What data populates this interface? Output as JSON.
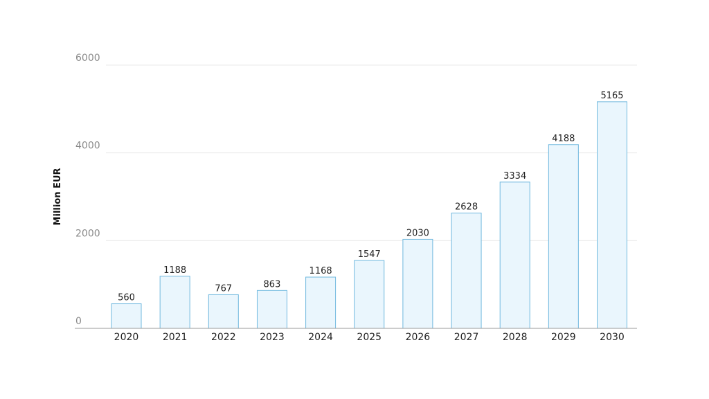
{
  "chart_data": {
    "type": "bar",
    "categories": [
      "2020",
      "2021",
      "2022",
      "2023",
      "2024",
      "2025",
      "2026",
      "2027",
      "2028",
      "2029",
      "2030"
    ],
    "values": [
      560,
      1188,
      767,
      863,
      1168,
      1547,
      2030,
      2628,
      3334,
      4188,
      5165
    ],
    "title": "",
    "xlabel": "",
    "ylabel": "Million EUR",
    "ylim": [
      0,
      6000
    ],
    "yticks": [
      0,
      2000,
      4000,
      6000
    ],
    "grid": true,
    "legend": "none",
    "colors": {
      "bar_fill": "#eaf6fd",
      "bar_stroke": "#6fb8de",
      "gridline": "#e9e9e9",
      "baseline": "#9a9a9a"
    }
  }
}
